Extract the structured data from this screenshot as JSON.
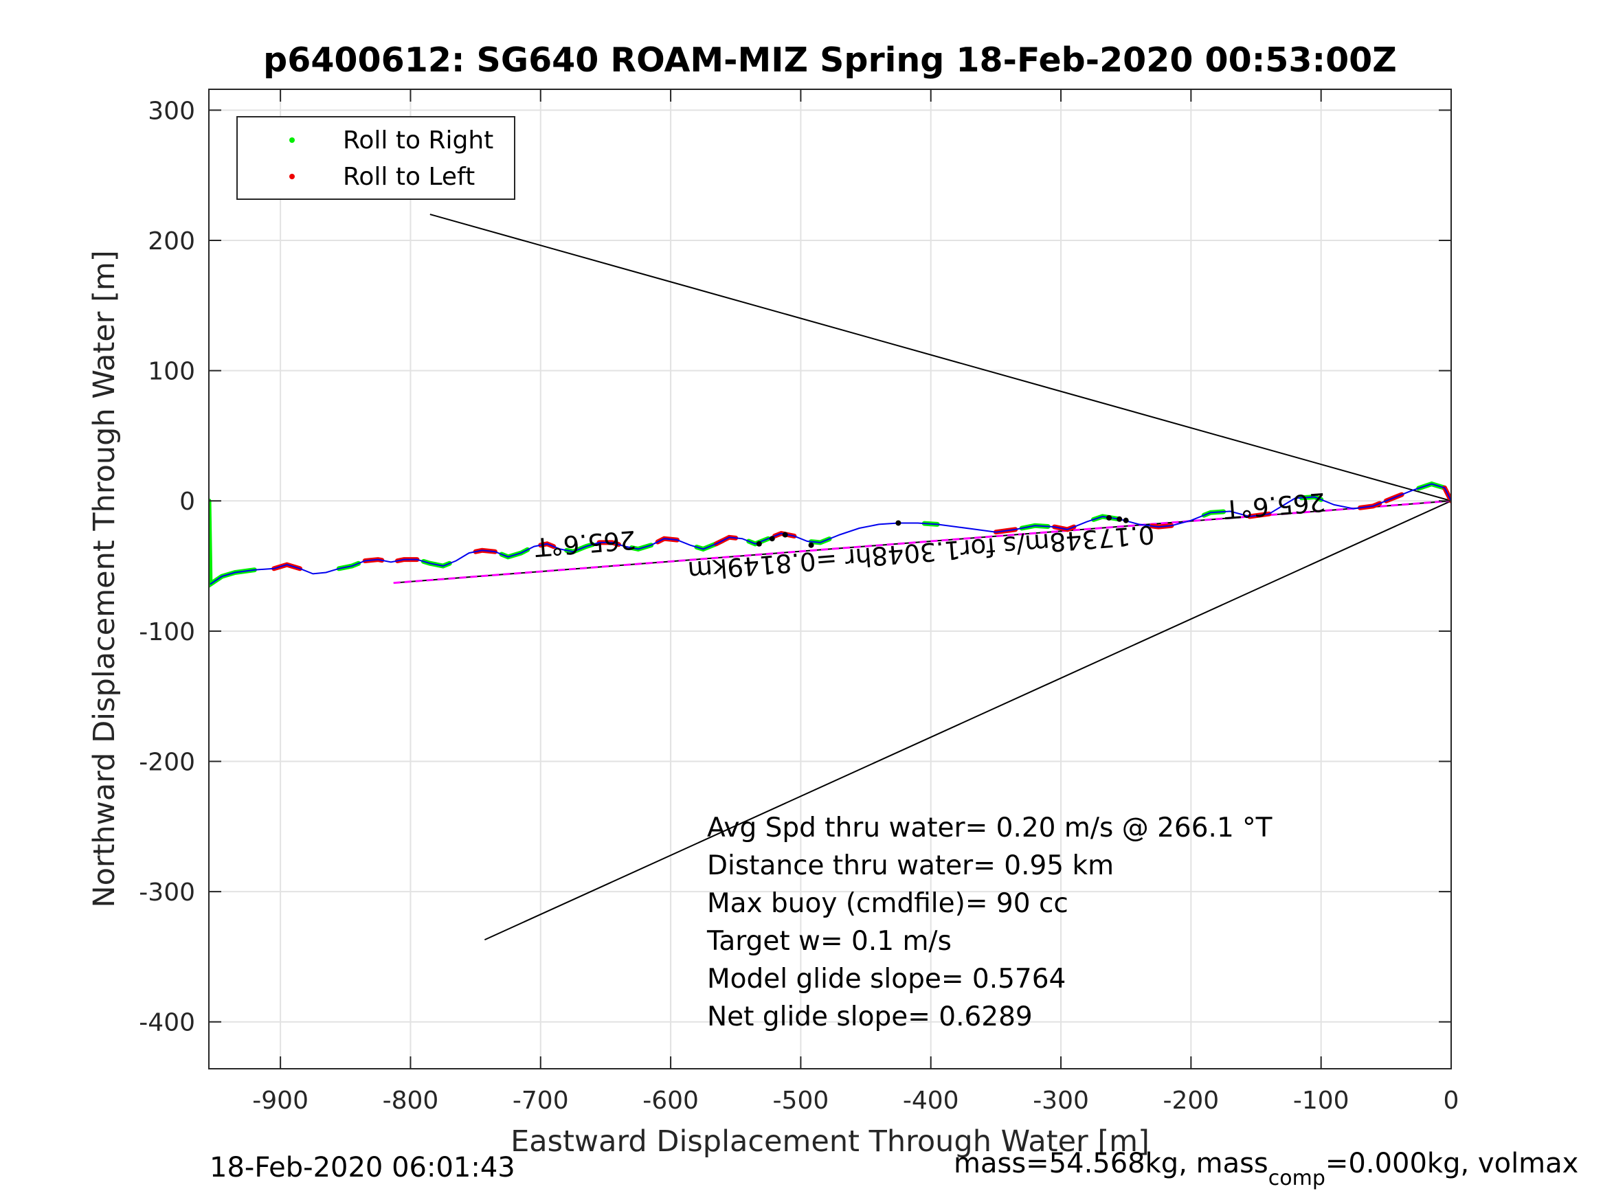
{
  "chart_data": {
    "type": "line",
    "title": "p6400612: SG640 ROAM-MIZ Spring 18-Feb-2020 00:53:00Z",
    "xlabel": "Eastward Displacement Through Water [m]",
    "ylabel": "Northward Displacement Through Water [m]",
    "xlim": [
      -955,
      0
    ],
    "ylim": [
      -436,
      316
    ],
    "xticks": [
      -900,
      -800,
      -700,
      -600,
      -500,
      -400,
      -300,
      -200,
      -100,
      0
    ],
    "xtick_labels": [
      "-900",
      "-800",
      "-700",
      "-600",
      "-500",
      "-400",
      "-300",
      "-200",
      "-100",
      "0"
    ],
    "yticks": [
      300,
      200,
      100,
      0,
      -100,
      -200,
      -300,
      -400
    ],
    "ytick_labels": [
      "300",
      "200",
      "100",
      "0",
      "-100",
      "-200",
      "-300",
      "-400"
    ],
    "grid": true,
    "legend_placement": "top-left",
    "legend": [
      {
        "label": "Roll to Right",
        "color": "#00ee00"
      },
      {
        "label": "Roll to Left",
        "color": "#ee0000"
      }
    ],
    "colors": {
      "track": "#0000ee",
      "roll_right": "#00ee00",
      "roll_left": "#ee0000",
      "net_vector": "#ff00ff",
      "lines": "#000000"
    },
    "track": [
      [
        -954,
        -64
      ],
      [
        -945,
        -58
      ],
      [
        -935,
        -55
      ],
      [
        -920,
        -53
      ],
      [
        -905,
        -52
      ],
      [
        -895,
        -49
      ],
      [
        -885,
        -52
      ],
      [
        -875,
        -56
      ],
      [
        -865,
        -55
      ],
      [
        -855,
        -52
      ],
      [
        -845,
        -50
      ],
      [
        -835,
        -46
      ],
      [
        -825,
        -45
      ],
      [
        -815,
        -47
      ],
      [
        -805,
        -45
      ],
      [
        -795,
        -45
      ],
      [
        -785,
        -48
      ],
      [
        -775,
        -50
      ],
      [
        -765,
        -46
      ],
      [
        -755,
        -40
      ],
      [
        -745,
        -38
      ],
      [
        -735,
        -39
      ],
      [
        -725,
        -43
      ],
      [
        -715,
        -40
      ],
      [
        -705,
        -35
      ],
      [
        -695,
        -33
      ],
      [
        -685,
        -37
      ],
      [
        -675,
        -39
      ],
      [
        -665,
        -35
      ],
      [
        -655,
        -32
      ],
      [
        -645,
        -32
      ],
      [
        -635,
        -35
      ],
      [
        -625,
        -37
      ],
      [
        -615,
        -34
      ],
      [
        -605,
        -29
      ],
      [
        -595,
        -30
      ],
      [
        -585,
        -34
      ],
      [
        -575,
        -37
      ],
      [
        -565,
        -33
      ],
      [
        -555,
        -28
      ],
      [
        -545,
        -29
      ],
      [
        -535,
        -33
      ],
      [
        -525,
        -29
      ],
      [
        -515,
        -25
      ],
      [
        -505,
        -27
      ],
      [
        -495,
        -31
      ],
      [
        -485,
        -32
      ],
      [
        -470,
        -26
      ],
      [
        -455,
        -21
      ],
      [
        -440,
        -18
      ],
      [
        -425,
        -17
      ],
      [
        -410,
        -17
      ],
      [
        -395,
        -18
      ],
      [
        -380,
        -20
      ],
      [
        -365,
        -22
      ],
      [
        -350,
        -24
      ],
      [
        -335,
        -22
      ],
      [
        -320,
        -19
      ],
      [
        -305,
        -20
      ],
      [
        -295,
        -22
      ],
      [
        -280,
        -16
      ],
      [
        -268,
        -12
      ],
      [
        -255,
        -14
      ],
      [
        -240,
        -18
      ],
      [
        -225,
        -20
      ],
      [
        -215,
        -19
      ],
      [
        -200,
        -15
      ],
      [
        -185,
        -9
      ],
      [
        -170,
        -8
      ],
      [
        -155,
        -12
      ],
      [
        -140,
        -10
      ],
      [
        -120,
        2
      ],
      [
        -105,
        3
      ],
      [
        -90,
        -3
      ],
      [
        -75,
        -6
      ],
      [
        -60,
        -4
      ],
      [
        -45,
        2
      ],
      [
        -30,
        8
      ],
      [
        -15,
        13
      ],
      [
        -5,
        10
      ],
      [
        0,
        0
      ]
    ],
    "roll_right_segments": [
      [
        -955,
        -920
      ],
      [
        -855,
        -840
      ],
      [
        -790,
        -770
      ],
      [
        -730,
        -710
      ],
      [
        -680,
        -660
      ],
      [
        -630,
        -615
      ],
      [
        -580,
        -560
      ],
      [
        -540,
        -525
      ],
      [
        -492,
        -478
      ],
      [
        -405,
        -395
      ],
      [
        -330,
        -310
      ],
      [
        -275,
        -255
      ],
      [
        -190,
        -175
      ],
      [
        -115,
        -100
      ],
      [
        -25,
        -5
      ]
    ],
    "roll_left_segments": [
      [
        -905,
        -885
      ],
      [
        -835,
        -822
      ],
      [
        -810,
        -795
      ],
      [
        -750,
        -735
      ],
      [
        -700,
        -690
      ],
      [
        -655,
        -640
      ],
      [
        -610,
        -595
      ],
      [
        -565,
        -550
      ],
      [
        -520,
        -505
      ],
      [
        -350,
        -335
      ],
      [
        -305,
        -290
      ],
      [
        -230,
        -215
      ],
      [
        -155,
        -140
      ],
      [
        -70,
        -55
      ],
      [
        -50,
        -38
      ],
      [
        -5,
        0
      ]
    ],
    "markers": [
      [
        -532,
        -33
      ],
      [
        -522,
        -29
      ],
      [
        -512,
        -26
      ],
      [
        -492,
        -34
      ],
      [
        -425,
        -17
      ],
      [
        -263,
        -13
      ],
      [
        -255,
        -14
      ],
      [
        -250,
        -15
      ]
    ],
    "net_vector": [
      [
        -813,
        -63
      ],
      [
        0,
        0
      ]
    ],
    "cone_lines": [
      [
        [
          -785,
          220
        ],
        [
          0,
          0
        ]
      ],
      [
        [
          -743,
          -337
        ],
        [
          0,
          0
        ]
      ]
    ],
    "labels": [
      {
        "text": "265.6°T",
        "x": -666,
        "y": -26
      },
      {
        "text": "265.6°T",
        "x": -136,
        "y": 3
      },
      {
        "text": "0.17348m/s for1.3048hr =0.8149km",
        "x": -408,
        "y": -33
      }
    ],
    "annotations": [
      "Avg Spd thru water=  0.20 m/s @ 266.1 °T",
      "Distance thru water=  0.95 km",
      "Max buoy (cmdfile)= 90 cc",
      "Target w= 0.1 m/s",
      "Model glide slope= 0.5764",
      "Net glide slope= 0.6289"
    ]
  },
  "footer": {
    "timestamp": "18-Feb-2020 06:01:43",
    "mass_prefix": "mass=54.568kg, mass",
    "mass_sub": "comp",
    "mass_suffix": "=0.000kg, volmax"
  }
}
